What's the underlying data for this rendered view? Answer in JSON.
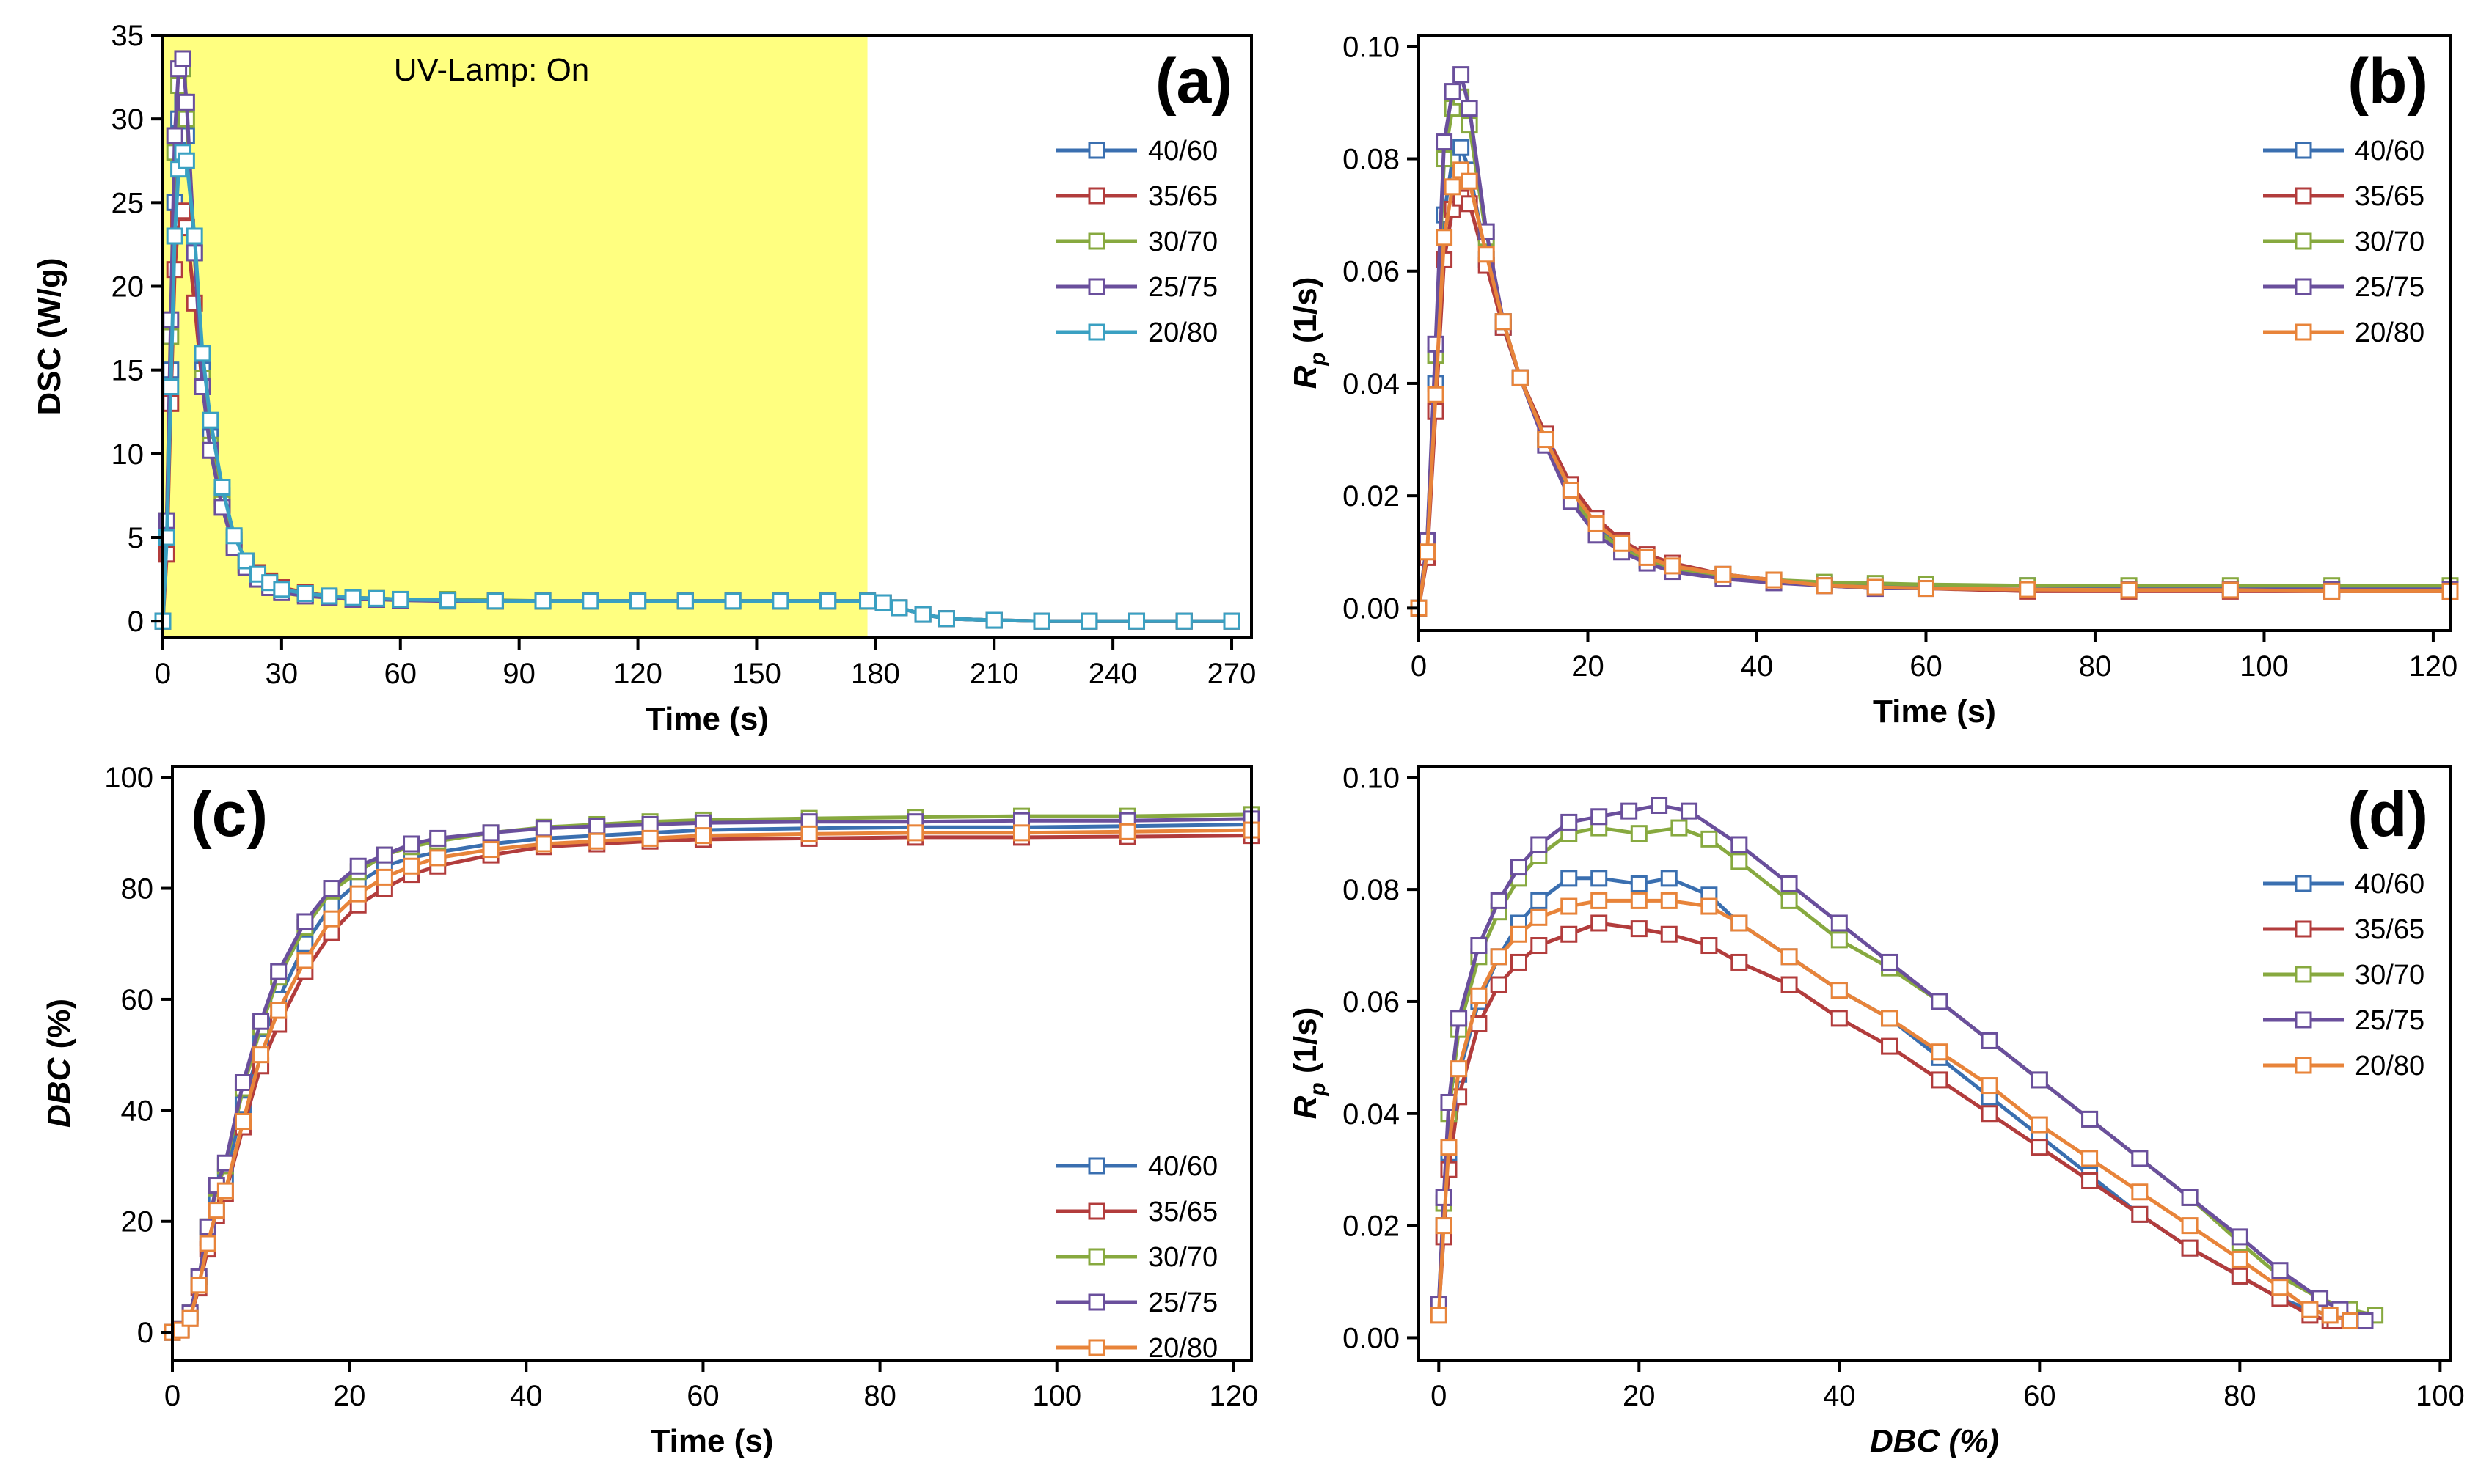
{
  "chart_data": [
    {
      "panel": "a",
      "type": "line",
      "panel_label": "(a)",
      "annotation": "UV-Lamp: On",
      "xlabel": "Time (s)",
      "ylabel": "DSC (W/g)",
      "xlim": [
        0,
        275
      ],
      "ylim": [
        -1,
        35
      ],
      "xticks": [
        0,
        30,
        60,
        90,
        120,
        150,
        180,
        210,
        240,
        270
      ],
      "yticks": [
        0,
        5,
        10,
        15,
        20,
        25,
        30,
        35
      ],
      "shaded_region": {
        "x": [
          0,
          178
        ],
        "color": "#ffff80"
      },
      "legend_position": "right",
      "x": [
        0,
        1,
        2,
        3,
        4,
        5,
        6,
        8,
        10,
        12,
        15,
        18,
        21,
        24,
        27,
        30,
        36,
        42,
        48,
        54,
        60,
        72,
        84,
        96,
        108,
        120,
        132,
        144,
        156,
        168,
        178,
        182,
        186,
        192,
        198,
        210,
        222,
        234,
        246,
        258,
        270
      ],
      "series": [
        {
          "name": "40/60",
          "color": "#3a6fb0",
          "values": [
            0,
            5,
            15,
            25,
            30,
            31,
            29,
            22,
            15,
            11,
            7.3,
            4.8,
            3.4,
            2.7,
            2.2,
            1.8,
            1.6,
            1.4,
            1.35,
            1.3,
            1.3,
            1.25,
            1.2,
            1.2,
            1.2,
            1.2,
            1.2,
            1.2,
            1.2,
            1.2,
            1.2,
            1.1,
            0.8,
            0.4,
            0.15,
            0.05,
            0,
            0,
            0,
            0,
            0
          ]
        },
        {
          "name": "35/65",
          "color": "#b23c3c",
          "values": [
            0,
            4,
            13,
            21,
            24,
            24.5,
            23.5,
            19,
            14,
            10.5,
            7.5,
            5,
            3.6,
            2.9,
            2.4,
            2,
            1.7,
            1.5,
            1.4,
            1.35,
            1.3,
            1.25,
            1.2,
            1.2,
            1.2,
            1.2,
            1.2,
            1.2,
            1.2,
            1.2,
            1.2,
            1.1,
            0.8,
            0.4,
            0.15,
            0.05,
            0,
            0,
            0,
            0,
            0
          ]
        },
        {
          "name": "30/70",
          "color": "#87a93f",
          "values": [
            0,
            6,
            17,
            28,
            32,
            33,
            30,
            22,
            14.5,
            10.5,
            7,
            4.6,
            3.3,
            2.6,
            2.1,
            1.8,
            1.6,
            1.45,
            1.4,
            1.35,
            1.3,
            1.3,
            1.25,
            1.2,
            1.2,
            1.2,
            1.2,
            1.2,
            1.2,
            1.2,
            1.2,
            1.1,
            0.8,
            0.4,
            0.15,
            0.05,
            0,
            0,
            0,
            0,
            0
          ]
        },
        {
          "name": "25/75",
          "color": "#6a4f9c",
          "values": [
            0,
            6,
            18,
            29,
            33,
            33.6,
            31,
            22,
            14,
            10.2,
            6.8,
            4.4,
            3.2,
            2.5,
            2,
            1.7,
            1.5,
            1.4,
            1.3,
            1.3,
            1.25,
            1.2,
            1.2,
            1.2,
            1.2,
            1.2,
            1.2,
            1.2,
            1.2,
            1.2,
            1.2,
            1.1,
            0.8,
            0.4,
            0.15,
            0.05,
            0,
            0,
            0,
            0,
            0
          ]
        },
        {
          "name": "20/80",
          "color": "#3aa0c2",
          "values": [
            0,
            5,
            14,
            23,
            27,
            28,
            27.5,
            23,
            16,
            12,
            8,
            5.1,
            3.6,
            2.8,
            2.3,
            1.9,
            1.65,
            1.5,
            1.4,
            1.35,
            1.3,
            1.25,
            1.2,
            1.2,
            1.2,
            1.2,
            1.2,
            1.2,
            1.2,
            1.2,
            1.2,
            1.1,
            0.8,
            0.4,
            0.15,
            0.05,
            0,
            0,
            0,
            0,
            0
          ]
        }
      ]
    },
    {
      "panel": "b",
      "type": "line",
      "panel_label": "(b)",
      "xlabel": "Time (s)",
      "ylabel": "R",
      "ylabel_sub": "p",
      "ylabel_rest": " (1/s)",
      "xlim": [
        0,
        122
      ],
      "ylim": [
        -0.004,
        0.102
      ],
      "xticks": [
        0,
        20,
        40,
        60,
        80,
        100,
        120
      ],
      "yticks": [
        0.0,
        0.02,
        0.04,
        0.06,
        0.08,
        0.1
      ],
      "ytick_labels": [
        "0.00",
        "0.02",
        "0.04",
        "0.06",
        "0.08",
        "0.10"
      ],
      "legend_position": "top-right",
      "x": [
        0,
        1,
        2,
        3,
        4,
        5,
        6,
        8,
        10,
        12,
        15,
        18,
        21,
        24,
        27,
        30,
        36,
        42,
        48,
        54,
        60,
        72,
        84,
        96,
        108,
        122
      ],
      "series": [
        {
          "name": "40/60",
          "color": "#3a6fb0",
          "values": [
            0,
            0.01,
            0.04,
            0.07,
            0.08,
            0.082,
            0.078,
            0.062,
            0.05,
            0.041,
            0.03,
            0.021,
            0.015,
            0.011,
            0.0085,
            0.0075,
            0.006,
            0.005,
            0.0045,
            0.004,
            0.004,
            0.004,
            0.0035,
            0.0035,
            0.0035,
            0.0035
          ]
        },
        {
          "name": "35/65",
          "color": "#b23c3c",
          "values": [
            0,
            0.009,
            0.035,
            0.062,
            0.071,
            0.073,
            0.072,
            0.061,
            0.05,
            0.041,
            0.031,
            0.022,
            0.016,
            0.012,
            0.0095,
            0.008,
            0.006,
            0.005,
            0.004,
            0.0035,
            0.0035,
            0.003,
            0.003,
            0.003,
            0.003,
            0.003
          ]
        },
        {
          "name": "30/70",
          "color": "#87a93f",
          "values": [
            0,
            0.012,
            0.045,
            0.08,
            0.089,
            0.091,
            0.086,
            0.066,
            0.051,
            0.041,
            0.03,
            0.02,
            0.014,
            0.0105,
            0.0085,
            0.007,
            0.0058,
            0.005,
            0.0046,
            0.0044,
            0.0042,
            0.004,
            0.004,
            0.004,
            0.004,
            0.004
          ]
        },
        {
          "name": "25/75",
          "color": "#6a4f9c",
          "values": [
            0,
            0.012,
            0.047,
            0.083,
            0.092,
            0.095,
            0.089,
            0.067,
            0.051,
            0.041,
            0.029,
            0.019,
            0.013,
            0.01,
            0.008,
            0.0065,
            0.0052,
            0.0045,
            0.004,
            0.0035,
            0.0035,
            0.0033,
            0.0033,
            0.0033,
            0.0033,
            0.0033
          ]
        },
        {
          "name": "20/80",
          "color": "#e8843a",
          "values": [
            0,
            0.01,
            0.038,
            0.066,
            0.075,
            0.078,
            0.076,
            0.063,
            0.051,
            0.041,
            0.03,
            0.021,
            0.015,
            0.0115,
            0.009,
            0.0075,
            0.006,
            0.005,
            0.004,
            0.0037,
            0.0035,
            0.0033,
            0.0032,
            0.0032,
            0.003,
            0.003
          ]
        }
      ]
    },
    {
      "panel": "c",
      "type": "line",
      "panel_label": "(c)",
      "xlabel": "Time (s)",
      "ylabel": "DBC (%)",
      "xlim": [
        0,
        122
      ],
      "ylim": [
        -5,
        102
      ],
      "xticks": [
        0,
        20,
        40,
        60,
        80,
        100,
        120
      ],
      "yticks": [
        0,
        20,
        40,
        60,
        80,
        100
      ],
      "legend_position": "bottom-right",
      "x": [
        0,
        1,
        2,
        3,
        4,
        5,
        6,
        8,
        10,
        12,
        15,
        18,
        21,
        24,
        27,
        30,
        36,
        42,
        48,
        54,
        60,
        72,
        84,
        96,
        108,
        122
      ],
      "series": [
        {
          "name": "40/60",
          "color": "#3a6fb0",
          "values": [
            0,
            0.5,
            3,
            9,
            17,
            24,
            28,
            41,
            52,
            60,
            70,
            77,
            81,
            84,
            85.5,
            86.5,
            88,
            89,
            89.5,
            90,
            90.5,
            90.8,
            91,
            91,
            91.2,
            91.5
          ]
        },
        {
          "name": "35/65",
          "color": "#b23c3c",
          "values": [
            0,
            0.4,
            2.5,
            8,
            15,
            21,
            25,
            37,
            48,
            55.5,
            65,
            72,
            77,
            80,
            82.5,
            84,
            86,
            87.5,
            88,
            88.5,
            88.8,
            89,
            89.2,
            89.2,
            89.3,
            89.5
          ]
        },
        {
          "name": "30/70",
          "color": "#87a93f",
          "values": [
            0,
            0.5,
            3.5,
            10,
            19,
            26,
            30,
            44,
            55,
            64,
            73,
            79.5,
            83,
            86,
            87.5,
            88.5,
            90,
            91,
            91.5,
            92,
            92.3,
            92.6,
            92.8,
            93,
            93,
            93.3
          ]
        },
        {
          "name": "25/75",
          "color": "#6a4f9c",
          "values": [
            0,
            0.5,
            3.5,
            10,
            19,
            26.5,
            30.5,
            45,
            56,
            65,
            74,
            80,
            84,
            86,
            88,
            89,
            90,
            90.8,
            91.2,
            91.5,
            91.8,
            92,
            92,
            92.2,
            92.2,
            92.5
          ]
        },
        {
          "name": "20/80",
          "color": "#e8843a",
          "values": [
            0,
            0.4,
            2.5,
            8.5,
            16,
            22,
            25.5,
            38,
            50,
            58,
            67,
            74.5,
            79,
            82,
            84,
            85.5,
            87,
            88,
            88.5,
            89,
            89.5,
            89.8,
            90,
            90,
            90.2,
            90.5
          ]
        }
      ]
    },
    {
      "panel": "d",
      "type": "line",
      "panel_label": "(d)",
      "xlabel": "DBC (%)",
      "ylabel": "R",
      "ylabel_sub": "p",
      "ylabel_rest": " (1/s)",
      "xlim": [
        -2,
        101
      ],
      "ylim": [
        -0.004,
        0.102
      ],
      "xticks": [
        0,
        20,
        40,
        60,
        80,
        100
      ],
      "yticks": [
        0.0,
        0.02,
        0.04,
        0.06,
        0.08,
        0.1
      ],
      "ytick_labels": [
        "0.00",
        "0.02",
        "0.04",
        "0.06",
        "0.08",
        "0.10"
      ],
      "legend_position": "right",
      "series": [
        {
          "name": "40/60",
          "color": "#3a6fb0",
          "x": [
            0,
            0.5,
            1,
            2,
            4,
            6,
            8,
            10,
            13,
            16,
            20,
            23,
            27,
            30,
            35,
            40,
            45,
            50,
            55,
            60,
            65,
            70,
            75,
            80,
            84,
            87,
            89,
            90,
            91.5
          ],
          "values": [
            0.005,
            0.02,
            0.033,
            0.047,
            0.06,
            0.068,
            0.074,
            0.078,
            0.082,
            0.082,
            0.081,
            0.082,
            0.079,
            0.074,
            0.068,
            0.062,
            0.057,
            0.05,
            0.043,
            0.036,
            0.029,
            0.022,
            0.016,
            0.011,
            0.007,
            0.005,
            0.004,
            0.0035,
            0.003
          ]
        },
        {
          "name": "35/65",
          "color": "#b23c3c",
          "x": [
            0,
            0.5,
            1,
            2,
            4,
            6,
            8,
            10,
            13,
            16,
            20,
            23,
            27,
            30,
            35,
            40,
            45,
            50,
            55,
            60,
            65,
            70,
            75,
            80,
            84,
            87,
            89,
            89.5
          ],
          "values": [
            0.005,
            0.018,
            0.03,
            0.043,
            0.056,
            0.063,
            0.067,
            0.07,
            0.072,
            0.074,
            0.073,
            0.072,
            0.07,
            0.067,
            0.063,
            0.057,
            0.052,
            0.046,
            0.04,
            0.034,
            0.028,
            0.022,
            0.016,
            0.011,
            0.007,
            0.004,
            0.003,
            0.003
          ]
        },
        {
          "name": "30/70",
          "color": "#87a93f",
          "x": [
            0,
            0.5,
            1,
            2,
            4,
            6,
            8,
            10,
            13,
            16,
            20,
            24,
            27,
            30,
            35,
            40,
            45,
            50,
            55,
            60,
            65,
            70,
            75,
            80,
            84,
            88,
            91,
            93.5
          ],
          "values": [
            0.006,
            0.024,
            0.04,
            0.055,
            0.068,
            0.076,
            0.082,
            0.086,
            0.09,
            0.091,
            0.09,
            0.091,
            0.089,
            0.085,
            0.078,
            0.071,
            0.066,
            0.06,
            0.053,
            0.046,
            0.039,
            0.032,
            0.025,
            0.017,
            0.011,
            0.007,
            0.005,
            0.004
          ]
        },
        {
          "name": "25/75",
          "color": "#6a4f9c",
          "x": [
            0,
            0.5,
            1,
            2,
            4,
            6,
            8,
            10,
            13,
            16,
            19,
            22,
            25,
            30,
            35,
            40,
            45,
            50,
            55,
            60,
            65,
            70,
            75,
            80,
            84,
            88,
            90,
            92.5
          ],
          "values": [
            0.006,
            0.025,
            0.042,
            0.057,
            0.07,
            0.078,
            0.084,
            0.088,
            0.092,
            0.093,
            0.094,
            0.095,
            0.094,
            0.088,
            0.081,
            0.074,
            0.067,
            0.06,
            0.053,
            0.046,
            0.039,
            0.032,
            0.025,
            0.018,
            0.012,
            0.007,
            0.005,
            0.003
          ]
        },
        {
          "name": "20/80",
          "color": "#e8843a",
          "x": [
            0,
            0.5,
            1,
            2,
            4,
            6,
            8,
            10,
            13,
            16,
            20,
            23,
            27,
            30,
            35,
            40,
            45,
            50,
            55,
            60,
            65,
            70,
            75,
            80,
            84,
            87,
            89,
            91
          ],
          "values": [
            0.004,
            0.02,
            0.034,
            0.048,
            0.061,
            0.068,
            0.072,
            0.075,
            0.077,
            0.078,
            0.078,
            0.078,
            0.077,
            0.074,
            0.068,
            0.062,
            0.057,
            0.051,
            0.045,
            0.038,
            0.032,
            0.026,
            0.02,
            0.014,
            0.009,
            0.005,
            0.004,
            0.003
          ]
        }
      ]
    }
  ]
}
